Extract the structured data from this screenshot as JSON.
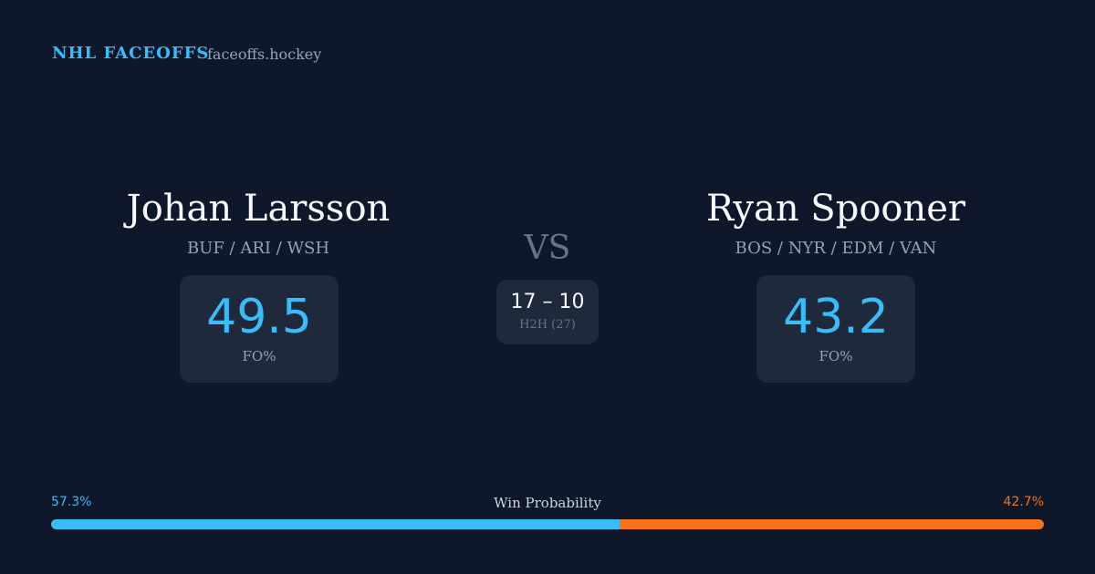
{
  "header": {
    "brand": "NHL FACEOFFS",
    "site": "faceoffs.hockey"
  },
  "players": [
    {
      "name": "Johan Larsson",
      "teams": "BUF / ARI / WSH",
      "fo_pct": "49.5",
      "fo_label": "FO%"
    },
    {
      "name": "Ryan Spooner",
      "teams": "BOS / NYR / EDM / VAN",
      "fo_pct": "43.2",
      "fo_label": "FO%"
    }
  ],
  "versus": "VS",
  "head_to_head": {
    "score": "17 – 10",
    "label": "H2H (27)"
  },
  "win_probability": {
    "title": "Win Probability",
    "values": [
      57.3,
      42.7
    ],
    "value_labels": [
      "57.3%",
      "42.7%"
    ],
    "colors": [
      "#38bdf8",
      "#f97316"
    ]
  }
}
